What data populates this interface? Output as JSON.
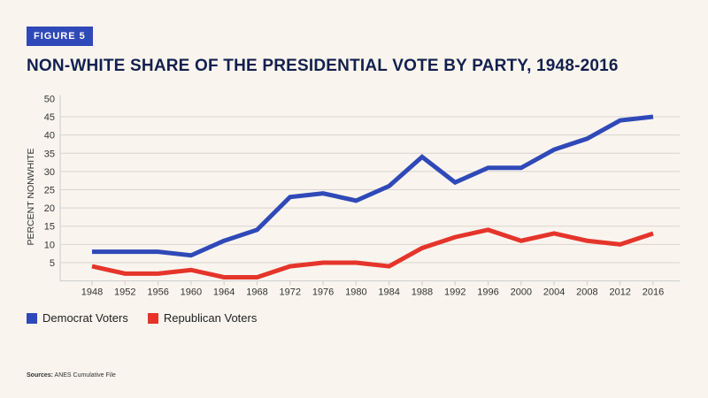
{
  "badge": "FIGURE 5",
  "chart_data": {
    "type": "line",
    "title": "NON-WHITE SHARE OF THE PRESIDENTIAL VOTE BY PARTY, 1948-2016",
    "xlabel": "",
    "ylabel": "PERCENT NONWHITE",
    "ylim": [
      0,
      50
    ],
    "yticks": [
      5,
      10,
      15,
      20,
      25,
      30,
      35,
      40,
      45,
      50
    ],
    "grid": true,
    "legend_position": "bottom-left",
    "x": [
      1948,
      1952,
      1956,
      1960,
      1964,
      1968,
      1972,
      1976,
      1980,
      1984,
      1988,
      1992,
      1996,
      2000,
      2004,
      2008,
      2012,
      2016
    ],
    "series": [
      {
        "name": "Democrat Voters",
        "color": "#3049b8",
        "values": [
          8,
          8,
          8,
          7,
          11,
          14,
          23,
          24,
          22,
          26,
          34,
          27,
          31,
          31,
          36,
          39,
          44,
          45
        ]
      },
      {
        "name": "Republican Voters",
        "color": "#e5352b",
        "values": [
          4,
          2,
          2,
          3,
          1,
          1,
          4,
          5,
          5,
          4,
          9,
          12,
          14,
          11,
          13,
          11,
          10,
          13
        ]
      }
    ]
  },
  "sources": {
    "label": "Sources:",
    "text": "ANES Cumulative File"
  }
}
